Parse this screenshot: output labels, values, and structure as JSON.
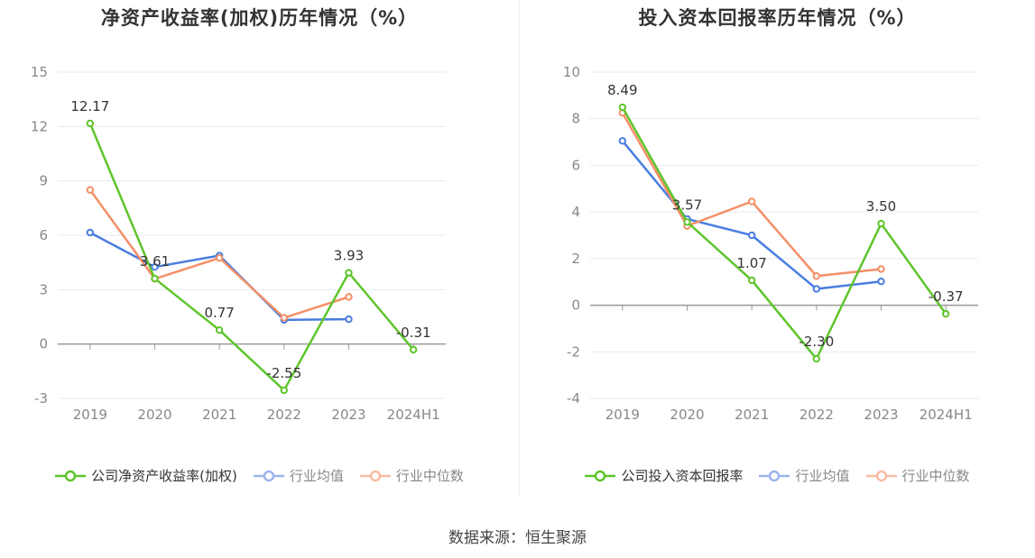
{
  "footer": {
    "source": "数据来源：恒生聚源"
  },
  "chart_data": [
    {
      "type": "line",
      "title": "净资产收益率(加权)历年情况（%）",
      "categories": [
        "2019",
        "2020",
        "2021",
        "2022",
        "2023",
        "2024H1"
      ],
      "y_ticks": [
        "15",
        "12",
        "9",
        "6",
        "3",
        "0",
        "-3"
      ],
      "ylim": [
        -3,
        15
      ],
      "grid": true,
      "legend_position": "bottom",
      "series": [
        {
          "name": "公司净资产收益率(加权)",
          "color": "#5ec52b",
          "values": [
            12.17,
            3.61,
            0.77,
            -2.55,
            3.93,
            -0.31
          ],
          "labels": [
            "12.17",
            "3.61",
            "0.77",
            "-2.55",
            "3.93",
            "-0.31"
          ]
        },
        {
          "name": "行业均值",
          "color": "#4a7ee0",
          "values": [
            6.15,
            4.25,
            4.88,
            1.33,
            1.37,
            null
          ]
        },
        {
          "name": "行业中位数",
          "color": "#f58f68",
          "values": [
            8.5,
            3.6,
            4.75,
            1.45,
            2.6,
            null
          ]
        }
      ]
    },
    {
      "type": "line",
      "title": "投入资本回报率历年情况（%）",
      "categories": [
        "2019",
        "2020",
        "2021",
        "2022",
        "2023",
        "2024H1"
      ],
      "y_ticks": [
        "10",
        "8",
        "6",
        "4",
        "2",
        "0",
        "-2",
        "-4"
      ],
      "ylim": [
        -4,
        10
      ],
      "grid": true,
      "legend_position": "bottom",
      "series": [
        {
          "name": "公司投入资本回报率",
          "color": "#5ec52b",
          "values": [
            8.49,
            3.57,
            1.07,
            -2.3,
            3.5,
            -0.37
          ],
          "labels": [
            "8.49",
            "3.57",
            "1.07",
            "-2.30",
            "3.50",
            "-0.37"
          ]
        },
        {
          "name": "行业均值",
          "color": "#4a7ee0",
          "values": [
            7.05,
            3.7,
            3.0,
            0.7,
            1.02,
            null
          ]
        },
        {
          "name": "行业中位数",
          "color": "#f58f68",
          "values": [
            8.25,
            3.4,
            4.45,
            1.25,
            1.55,
            null
          ]
        }
      ]
    }
  ]
}
